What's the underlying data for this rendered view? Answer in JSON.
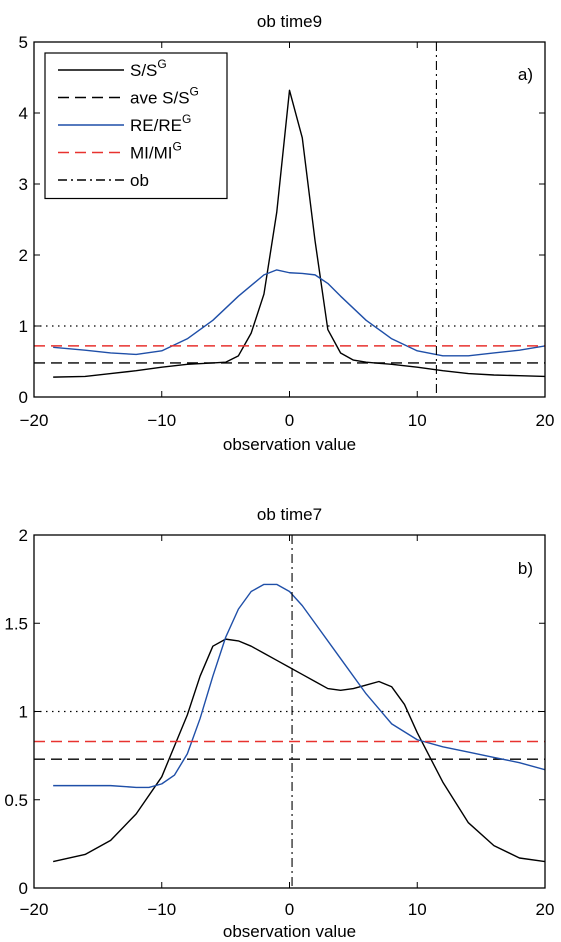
{
  "chart_data": [
    {
      "type": "line",
      "title": "ob time9",
      "panel_label": "a)",
      "xlabel": "observation value",
      "ylabel": "",
      "xlim": [
        -20,
        20
      ],
      "ylim": [
        0,
        5
      ],
      "xticks": [
        -20,
        -10,
        0,
        10,
        20
      ],
      "yticks": [
        0,
        1,
        2,
        3,
        4,
        5
      ],
      "xtick_labels": [
        "−20",
        "−10",
        "0",
        "10",
        "20"
      ],
      "ytick_labels": [
        "0",
        "1",
        "2",
        "3",
        "4",
        "5"
      ],
      "grid": false,
      "legend_position": "top-left",
      "legend": [
        {
          "series": "S",
          "label_base": "S/S",
          "label_sup": "G",
          "style": "solid",
          "color": "#000000"
        },
        {
          "series": "aveS",
          "label_base": "ave S/S",
          "label_sup": "G",
          "style": "dashed",
          "color": "#000000"
        },
        {
          "series": "RE",
          "label_base": "RE/RE",
          "label_sup": "G",
          "style": "solid",
          "color": "#1f4fa8"
        },
        {
          "series": "MI",
          "label_base": "MI/MI",
          "label_sup": "G",
          "style": "dashed",
          "color": "#e8322f"
        },
        {
          "series": "ob",
          "label_base": "ob",
          "label_sup": "",
          "style": "dashdot",
          "color": "#000000"
        }
      ],
      "reference_lines": {
        "y_dotted": 1.0
      },
      "series": [
        {
          "id": "S",
          "color": "#000000",
          "style": "solid",
          "x": [
            -18.5,
            -16,
            -14,
            -12,
            -10,
            -8,
            -6,
            -5,
            -4,
            -3,
            -2,
            -1,
            0,
            1,
            2,
            3,
            4,
            5,
            6,
            8,
            10,
            12,
            14,
            16,
            18,
            20
          ],
          "y": [
            0.28,
            0.29,
            0.33,
            0.37,
            0.42,
            0.46,
            0.48,
            0.49,
            0.58,
            0.9,
            1.45,
            2.6,
            4.32,
            3.65,
            2.2,
            0.95,
            0.62,
            0.52,
            0.49,
            0.46,
            0.42,
            0.37,
            0.33,
            0.31,
            0.3,
            0.29
          ]
        },
        {
          "id": "aveS",
          "color": "#000000",
          "style": "dashed",
          "x": [
            -20,
            20
          ],
          "y": [
            0.48,
            0.48
          ]
        },
        {
          "id": "RE",
          "color": "#1f4fa8",
          "style": "solid",
          "x": [
            -18.5,
            -16,
            -14,
            -12,
            -10,
            -8,
            -6,
            -4,
            -2,
            -1,
            0,
            1,
            2,
            3,
            4,
            6,
            8,
            10,
            12,
            14,
            16,
            18,
            20
          ],
          "y": [
            0.7,
            0.66,
            0.62,
            0.6,
            0.65,
            0.82,
            1.08,
            1.42,
            1.72,
            1.79,
            1.75,
            1.74,
            1.72,
            1.6,
            1.42,
            1.08,
            0.82,
            0.65,
            0.58,
            0.58,
            0.62,
            0.66,
            0.72
          ]
        },
        {
          "id": "MI",
          "color": "#e8322f",
          "style": "dashed",
          "x": [
            -20,
            20
          ],
          "y": [
            0.72,
            0.72
          ]
        },
        {
          "id": "ob",
          "color": "#000000",
          "style": "dashdot",
          "vertical_x": 11.5
        }
      ]
    },
    {
      "type": "line",
      "title": "ob time7",
      "panel_label": "b)",
      "xlabel": "observation value",
      "ylabel": "",
      "xlim": [
        -20,
        20
      ],
      "ylim": [
        0,
        2
      ],
      "xticks": [
        -20,
        -10,
        0,
        10,
        20
      ],
      "yticks": [
        0,
        0.5,
        1,
        1.5,
        2
      ],
      "xtick_labels": [
        "−20",
        "−10",
        "0",
        "10",
        "20"
      ],
      "ytick_labels": [
        "0",
        "0.5",
        "1",
        "1.5",
        "2"
      ],
      "grid": false,
      "reference_lines": {
        "y_dotted": 1.0
      },
      "series": [
        {
          "id": "S",
          "color": "#000000",
          "style": "solid",
          "x": [
            -18.5,
            -16,
            -14,
            -12,
            -10,
            -8,
            -7,
            -6,
            -5,
            -4,
            -3,
            -2,
            -1,
            0,
            1,
            2,
            3,
            4,
            5,
            6,
            7,
            8,
            9,
            10,
            12,
            14,
            16,
            18,
            20
          ],
          "y": [
            0.15,
            0.19,
            0.27,
            0.42,
            0.63,
            0.98,
            1.2,
            1.37,
            1.41,
            1.4,
            1.37,
            1.33,
            1.29,
            1.25,
            1.21,
            1.17,
            1.13,
            1.12,
            1.13,
            1.15,
            1.17,
            1.14,
            1.04,
            0.88,
            0.6,
            0.37,
            0.24,
            0.17,
            0.15
          ]
        },
        {
          "id": "aveS",
          "color": "#000000",
          "style": "dashed",
          "x": [
            -20,
            20
          ],
          "y": [
            0.73,
            0.73
          ]
        },
        {
          "id": "RE",
          "color": "#1f4fa8",
          "style": "solid",
          "x": [
            -18.5,
            -16,
            -14,
            -12,
            -11,
            -10,
            -9,
            -8,
            -7,
            -6,
            -5,
            -4,
            -3,
            -2,
            -1,
            0,
            1,
            2,
            4,
            6,
            8,
            10,
            12,
            14,
            16,
            18,
            20
          ],
          "y": [
            0.58,
            0.58,
            0.58,
            0.57,
            0.57,
            0.59,
            0.64,
            0.76,
            0.96,
            1.2,
            1.42,
            1.58,
            1.68,
            1.72,
            1.72,
            1.68,
            1.6,
            1.5,
            1.3,
            1.1,
            0.93,
            0.84,
            0.8,
            0.77,
            0.74,
            0.71,
            0.67
          ]
        },
        {
          "id": "MI",
          "color": "#e8322f",
          "style": "dashed",
          "x": [
            -20,
            20
          ],
          "y": [
            0.83,
            0.83
          ]
        },
        {
          "id": "ob",
          "color": "#000000",
          "style": "dashdot",
          "vertical_x": 0.2
        }
      ]
    }
  ]
}
